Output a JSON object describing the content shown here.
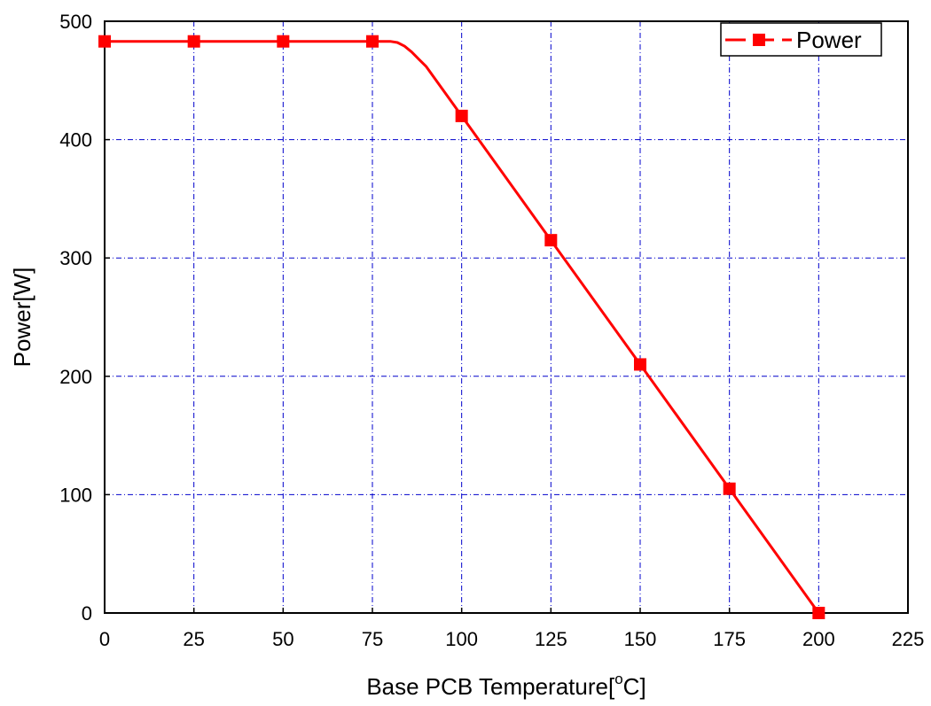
{
  "chart_data": {
    "type": "line",
    "title": "",
    "xlabel": "Base PCB Temperature[",
    "xlabel_sup": "o",
    "xlabel_tail": "C]",
    "ylabel": "Power[W]",
    "xlim": [
      0,
      225
    ],
    "ylim": [
      0,
      500
    ],
    "xticks": [
      0,
      25,
      50,
      75,
      100,
      125,
      150,
      175,
      200,
      225
    ],
    "yticks": [
      0,
      100,
      200,
      300,
      400,
      500
    ],
    "grid": true,
    "legend": {
      "position": "top-right",
      "entries": [
        "Power"
      ]
    },
    "series": [
      {
        "name": "Power",
        "color": "#ff0000",
        "marker": "square",
        "markers": {
          "x": [
            0,
            25,
            50,
            75,
            100,
            125,
            150,
            175,
            200
          ],
          "y": [
            483,
            483,
            483,
            483,
            420,
            315,
            210,
            105,
            0
          ]
        },
        "curve": {
          "x": [
            0,
            75,
            80,
            82,
            84,
            86,
            88,
            90,
            100,
            125,
            150,
            175,
            200
          ],
          "y": [
            483,
            483,
            483,
            482,
            479,
            474,
            468,
            462,
            420,
            315,
            210,
            105,
            0
          ]
        }
      }
    ]
  },
  "colors": {
    "series": "#ff0000",
    "grid": "#0000cc",
    "axes": "#000000"
  }
}
